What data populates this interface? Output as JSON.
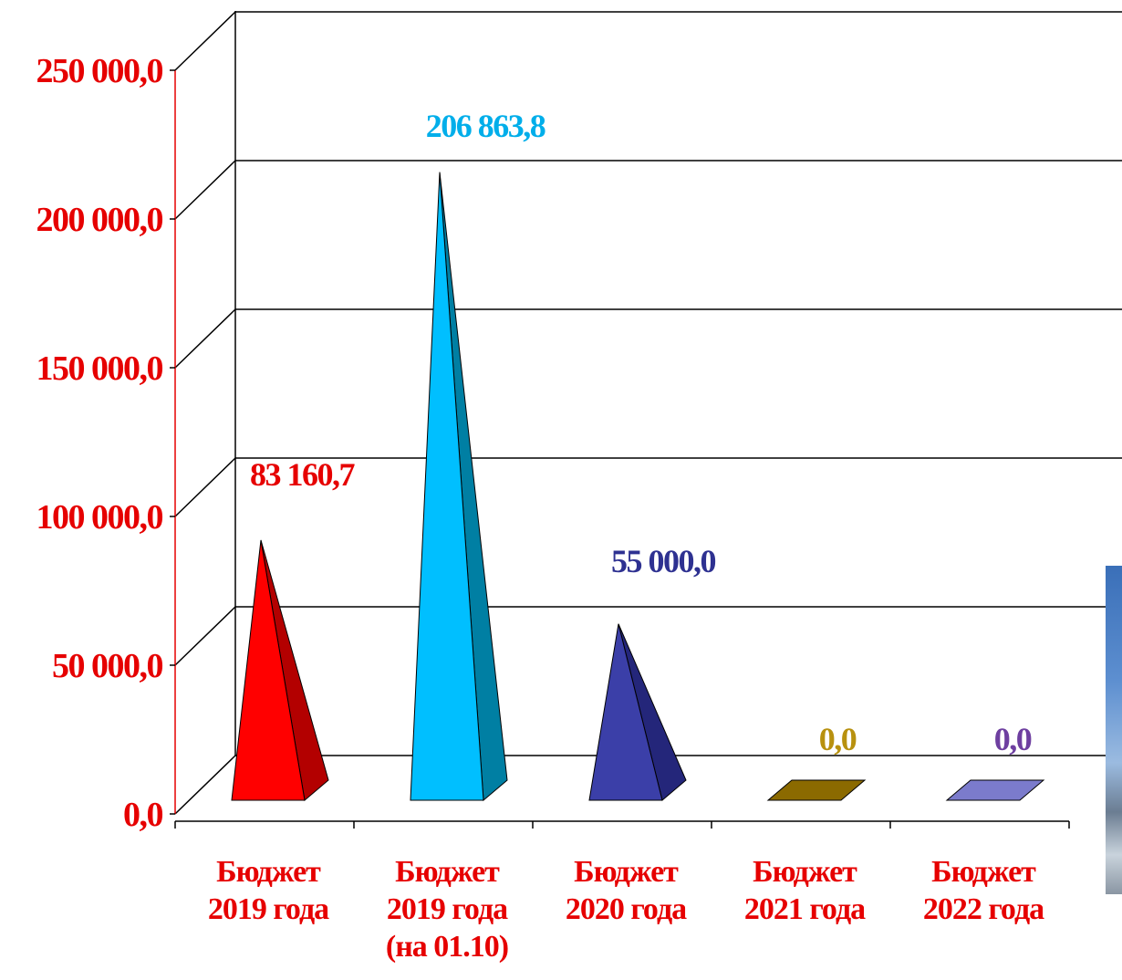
{
  "chart_data": {
    "type": "bar",
    "shape": "pyramid-3d",
    "categories": [
      [
        "Бюджет",
        "2019 года"
      ],
      [
        "Бюджет",
        "2019 года",
        "(на 01.10)"
      ],
      [
        "Бюджет",
        "2020 года"
      ],
      [
        "Бюджет",
        "2021 года"
      ],
      [
        "Бюджет",
        "2022 года"
      ]
    ],
    "values": [
      83160.7,
      206863.8,
      55000.0,
      0.0,
      0.0
    ],
    "data_labels": [
      "83 160,7",
      "206 863,8",
      "55 000,0",
      "0,0",
      "0,0"
    ],
    "colors": {
      "front": [
        "#ff0000",
        "#00bfff",
        "#3b3fa8",
        "#8b6a00",
        "#7b7bcc"
      ],
      "side": [
        "#b30000",
        "#007fa3",
        "#24267a",
        "#5c4600",
        "#5555a0"
      ],
      "labels": [
        "#e60000",
        "#00aeea",
        "#2e3191",
        "#b8910f",
        "#6e3fa0"
      ],
      "axis_text": "#e60000",
      "grid": "#000000",
      "y_axis_line": "#e60000"
    },
    "y_ticks": [
      "0,0",
      "50 000,0",
      "100 000,0",
      "150 000,0",
      "200 000,0",
      "250 000,0"
    ],
    "ylim": [
      0,
      250000
    ],
    "grid": true,
    "legend": "none",
    "title": "",
    "xlabel": "",
    "ylabel": ""
  }
}
